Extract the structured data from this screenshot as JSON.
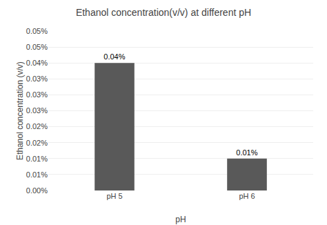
{
  "chart_data": {
    "type": "bar",
    "title": "Ethanol concentration(v/v) at different pH",
    "xlabel": "pH",
    "ylabel": "Ethanol concentration (v/v)",
    "categories": [
      "pH 5",
      "pH 6"
    ],
    "values": [
      0.0004,
      0.0001
    ],
    "value_labels": [
      "0.04%",
      "0.01%"
    ],
    "data_labels": true,
    "color": "#595959",
    "ylim": [
      0.0,
      0.0005
    ],
    "yticks": [
      {
        "value": 0,
        "label": "0.00%"
      },
      {
        "value": 5e-05,
        "label": "0.01%"
      },
      {
        "value": 0.0001,
        "label": "0.01%"
      },
      {
        "value": 0.00015,
        "label": "0.02%"
      },
      {
        "value": 0.0002,
        "label": "0.02%"
      },
      {
        "value": 0.00025,
        "label": "0.03%"
      },
      {
        "value": 0.0003,
        "label": "0.03%"
      },
      {
        "value": 0.00035,
        "label": "0.03%"
      },
      {
        "value": 0.0004,
        "label": "0.04%"
      },
      {
        "value": 0.00045,
        "label": "0.05%"
      },
      {
        "value": 0.0005,
        "label": "0.05%"
      }
    ],
    "grid": true
  }
}
